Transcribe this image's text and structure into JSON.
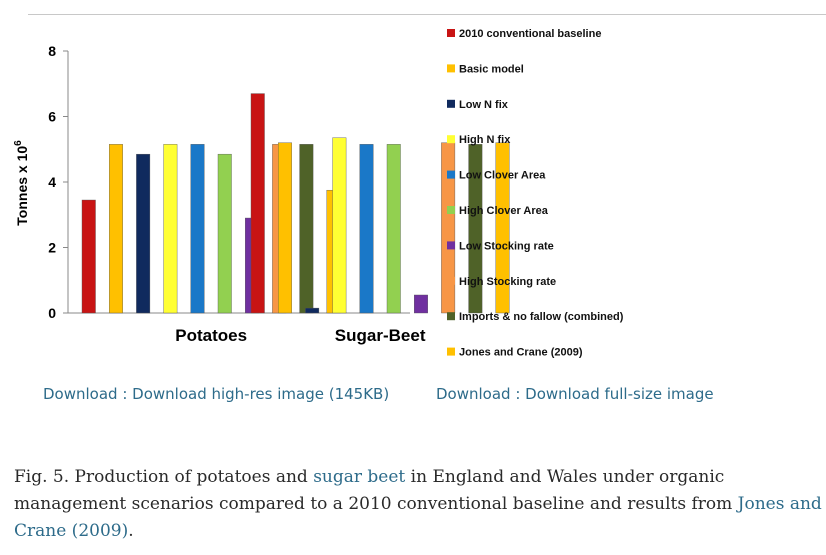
{
  "chart_data": {
    "type": "bar",
    "ylabel": "Tonnes x 10",
    "ylabel_superscript": "6",
    "ylim": [
      0,
      8
    ],
    "yticks": [
      "0",
      "2",
      "4",
      "6",
      "8"
    ],
    "categories": [
      "Potatoes",
      "Sugar-Beet"
    ],
    "legend_position": "right",
    "series": [
      {
        "name": "2010 conventional baseline",
        "color": "#c81414",
        "values": [
          3.45,
          6.7
        ]
      },
      {
        "name": "Basic model",
        "color": "#ffc000",
        "values": [
          5.15,
          5.2
        ]
      },
      {
        "name": "Low N fix",
        "color": "#102a5e",
        "values": [
          4.85,
          0.15
        ]
      },
      {
        "name": "High N fix",
        "color": "#ffff33",
        "values": [
          5.15,
          5.35
        ]
      },
      {
        "name": "Low Clover Area",
        "color": "#1a78c8",
        "values": [
          5.15,
          5.15
        ]
      },
      {
        "name": "High Clover Area",
        "color": "#92d050",
        "values": [
          4.85,
          5.15
        ]
      },
      {
        "name": "Low Stocking rate",
        "color": "#7030a0",
        "values": [
          2.9,
          0.55
        ]
      },
      {
        "name": "High Stocking rate",
        "color": "#f79646",
        "values": [
          5.15,
          5.2
        ]
      },
      {
        "name": "Imports & no fallow (combined)",
        "color": "#4f6228",
        "values": [
          5.15,
          5.15
        ]
      },
      {
        "name": "Jones and Crane (2009)",
        "color": "#ffc000",
        "values": [
          3.75,
          5.2
        ]
      }
    ]
  },
  "links": {
    "download_highres": "Download : Download high-res image (145KB)",
    "download_full": "Download : Download full-size image"
  },
  "caption": {
    "part1": "Fig. 5. Production of potatoes and ",
    "link1": "sugar beet",
    "part2": " in England and Wales under organic management scenarios compared to a 2010 conventional baseline and results from ",
    "link2": "Jones and Crane (2009)",
    "part3": "."
  }
}
